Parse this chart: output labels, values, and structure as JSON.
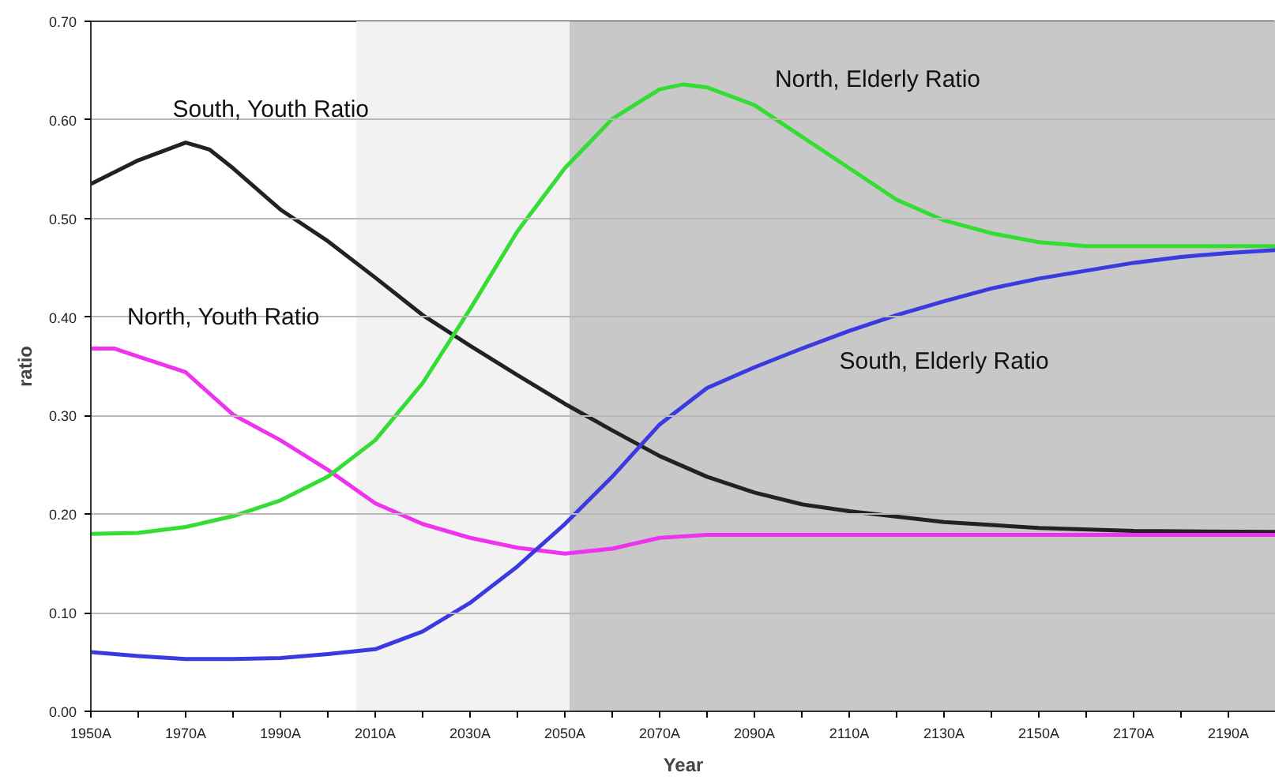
{
  "chart_data": {
    "type": "line",
    "xlabel": "Year",
    "ylabel": "ratio",
    "xlim": [
      1950,
      2200
    ],
    "ylim": [
      0,
      0.7
    ],
    "xticks": [
      {
        "value": 1950,
        "label": "1950A"
      },
      {
        "value": 1960,
        "label": null
      },
      {
        "value": 1970,
        "label": "1970A"
      },
      {
        "value": 1980,
        "label": null
      },
      {
        "value": 1990,
        "label": "1990A"
      },
      {
        "value": 2000,
        "label": null
      },
      {
        "value": 2010,
        "label": "2010A"
      },
      {
        "value": 2020,
        "label": null
      },
      {
        "value": 2030,
        "label": "2030A"
      },
      {
        "value": 2040,
        "label": null
      },
      {
        "value": 2050,
        "label": "2050A"
      },
      {
        "value": 2060,
        "label": null
      },
      {
        "value": 2070,
        "label": "2070A"
      },
      {
        "value": 2080,
        "label": null
      },
      {
        "value": 2090,
        "label": "2090A"
      },
      {
        "value": 2100,
        "label": null
      },
      {
        "value": 2110,
        "label": "2110A"
      },
      {
        "value": 2120,
        "label": null
      },
      {
        "value": 2130,
        "label": "2130A"
      },
      {
        "value": 2140,
        "label": null
      },
      {
        "value": 2150,
        "label": "2150A"
      },
      {
        "value": 2160,
        "label": null
      },
      {
        "value": 2170,
        "label": "2170A"
      },
      {
        "value": 2180,
        "label": null
      },
      {
        "value": 2190,
        "label": "2190A"
      }
    ],
    "yticks": [
      {
        "value": 0,
        "label": "0.00"
      },
      {
        "value": 0.1,
        "label": "0.10"
      },
      {
        "value": 0.2,
        "label": "0.20"
      },
      {
        "value": 0.3,
        "label": "0.30"
      },
      {
        "value": 0.4,
        "label": "0.40"
      },
      {
        "value": 0.5,
        "label": "0.50"
      },
      {
        "value": 0.6,
        "label": "0.60"
      },
      {
        "value": 0.7,
        "label": "0.70"
      }
    ],
    "grid": "y",
    "line_style": "solid",
    "marker": "none",
    "bands": [
      {
        "axis": "x",
        "from": 2006,
        "to": 2051,
        "label": null,
        "color": "#f2f2f2"
      },
      {
        "axis": "x",
        "from": 2051,
        "to": 2200,
        "label": null,
        "color": "#c8c8c8"
      }
    ],
    "series": [
      {
        "name": "South, Youth Ratio",
        "color": "#222222",
        "x": [
          1950,
          1960,
          1970,
          1975,
          1980,
          1990,
          2000,
          2010,
          2020,
          2030,
          2040,
          2050,
          2060,
          2070,
          2080,
          2090,
          2100,
          2110,
          2130,
          2150,
          2170,
          2200
        ],
        "values": [
          0.535,
          0.559,
          0.577,
          0.57,
          0.551,
          0.509,
          0.477,
          0.44,
          0.402,
          0.371,
          0.341,
          0.312,
          0.285,
          0.259,
          0.238,
          0.222,
          0.21,
          0.203,
          0.192,
          0.186,
          0.183,
          0.182
        ]
      },
      {
        "name": "North, Youth Ratio",
        "color": "#ee33ee",
        "x": [
          1950,
          1955,
          1960,
          1970,
          1980,
          1990,
          2000,
          2010,
          2020,
          2030,
          2040,
          2050,
          2060,
          2070,
          2080,
          2100,
          2150,
          2200
        ],
        "values": [
          0.368,
          0.368,
          0.36,
          0.344,
          0.301,
          0.275,
          0.245,
          0.211,
          0.19,
          0.176,
          0.166,
          0.16,
          0.165,
          0.176,
          0.179,
          0.179,
          0.179,
          0.179
        ]
      },
      {
        "name": "North, Elderly Ratio",
        "color": "#33dd33",
        "x": [
          1950,
          1960,
          1970,
          1980,
          1990,
          2000,
          2010,
          2020,
          2030,
          2040,
          2050,
          2060,
          2070,
          2075,
          2080,
          2090,
          2100,
          2110,
          2120,
          2130,
          2140,
          2150,
          2160,
          2200
        ],
        "values": [
          0.18,
          0.181,
          0.187,
          0.198,
          0.214,
          0.238,
          0.275,
          0.333,
          0.408,
          0.487,
          0.551,
          0.601,
          0.631,
          0.636,
          0.633,
          0.615,
          0.583,
          0.551,
          0.519,
          0.498,
          0.485,
          0.476,
          0.472,
          0.472
        ]
      },
      {
        "name": "South, Elderly Ratio",
        "color": "#3a3ae0",
        "x": [
          1950,
          1960,
          1970,
          1980,
          1990,
          2000,
          2010,
          2020,
          2030,
          2040,
          2050,
          2060,
          2070,
          2080,
          2090,
          2100,
          2110,
          2120,
          2130,
          2140,
          2150,
          2160,
          2170,
          2180,
          2190,
          2200
        ],
        "values": [
          0.06,
          0.056,
          0.053,
          0.053,
          0.054,
          0.058,
          0.063,
          0.081,
          0.11,
          0.147,
          0.19,
          0.238,
          0.291,
          0.328,
          0.349,
          0.368,
          0.386,
          0.402,
          0.416,
          0.429,
          0.439,
          0.447,
          0.455,
          0.461,
          0.465,
          0.468
        ]
      }
    ]
  }
}
